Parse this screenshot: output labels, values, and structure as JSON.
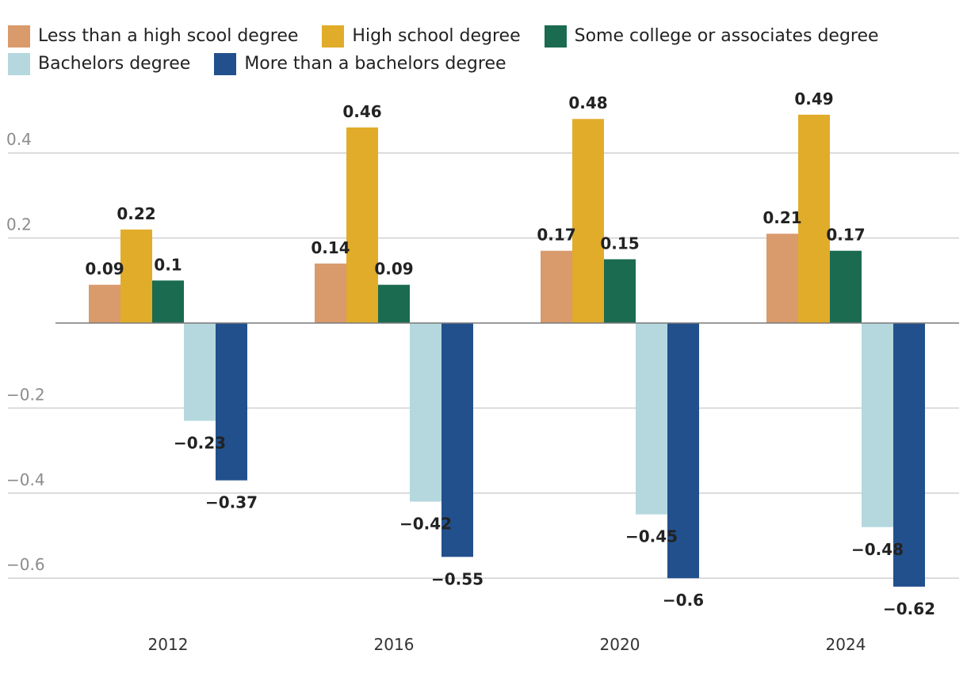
{
  "chart_data": {
    "type": "bar",
    "title": "",
    "xlabel": "",
    "ylabel": "",
    "categories": [
      "2012",
      "2016",
      "2020",
      "2024"
    ],
    "series": [
      {
        "name": "Less than a high scool degree",
        "color": "#d99a6c",
        "values": [
          0.09,
          0.14,
          0.17,
          0.21
        ]
      },
      {
        "name": "High school degree",
        "color": "#e1ac2a",
        "values": [
          0.22,
          0.46,
          0.48,
          0.49
        ]
      },
      {
        "name": "Some college or associates degree",
        "color": "#1a6b50",
        "values": [
          0.1,
          0.09,
          0.15,
          0.17
        ]
      },
      {
        "name": "Bachelors degree",
        "color": "#b4d8de",
        "values": [
          -0.23,
          -0.42,
          -0.45,
          -0.48
        ]
      },
      {
        "name": "More than a bachelors degree",
        "color": "#22508c",
        "values": [
          -0.37,
          -0.55,
          -0.6,
          -0.62
        ]
      }
    ],
    "value_labels": [
      [
        "0.09",
        "0.14",
        "0.17",
        "0.21"
      ],
      [
        "0.22",
        "0.46",
        "0.48",
        "0.49"
      ],
      [
        "0.1",
        "0.09",
        "0.15",
        "0.17"
      ],
      [
        "−0.23",
        "−0.42",
        "−0.45",
        "−0.48"
      ],
      [
        "−0.37",
        "−0.55",
        "−0.6",
        "−0.62"
      ]
    ],
    "y_ticks": [
      0.4,
      0.2,
      -0.2,
      -0.4,
      -0.6
    ],
    "y_tick_labels": [
      "0.4",
      "0.2",
      "−0.2",
      "−0.4",
      "−0.6"
    ],
    "ylim": [
      -0.7,
      0.55
    ],
    "grid": true,
    "legend_position": "top"
  }
}
